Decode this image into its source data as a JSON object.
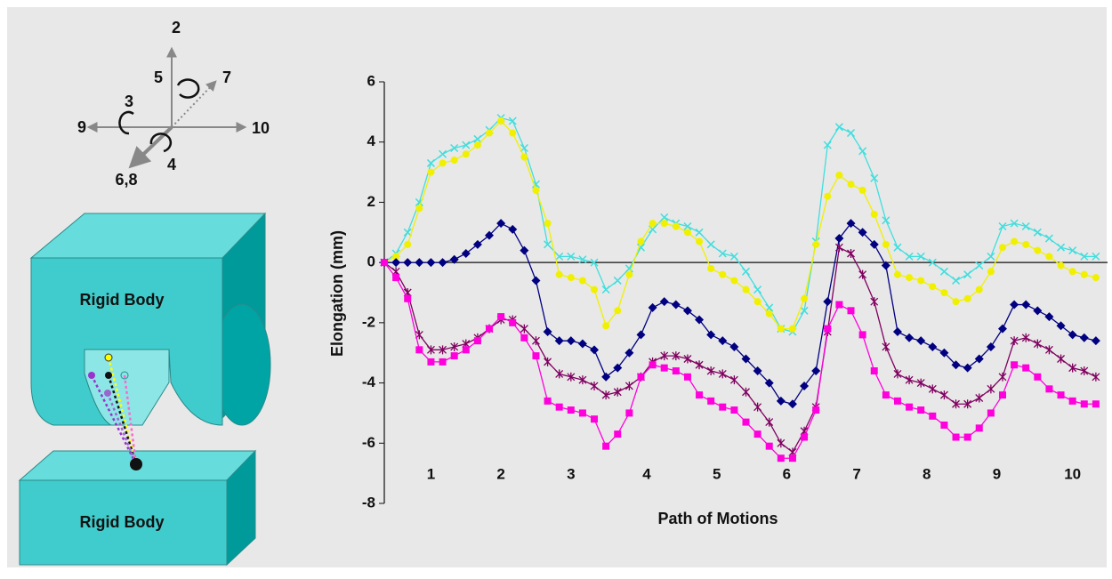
{
  "diagram": {
    "axes": [
      "2",
      "5",
      "7",
      "3",
      "9",
      "10",
      "4",
      "6,8"
    ],
    "bodies": [
      "Rigid Body",
      "Rigid Body"
    ]
  },
  "chart_data": {
    "type": "line",
    "y_label": "Elongation (mm)",
    "x_label": "Path of Motions",
    "x": [
      0,
      1,
      2,
      3,
      4,
      5,
      6,
      7,
      8,
      9,
      10,
      11,
      12,
      13,
      14,
      15,
      16,
      17,
      18,
      19,
      20,
      21,
      22,
      23,
      24,
      25,
      26,
      27,
      28,
      29,
      30,
      31,
      32,
      33,
      34,
      35,
      36,
      37,
      38,
      39,
      40,
      41,
      42,
      43,
      44,
      45,
      46,
      47,
      48,
      49,
      50,
      51,
      52,
      53,
      54,
      55,
      56,
      57,
      58,
      59,
      60,
      61
    ],
    "xlim": [
      0,
      62
    ],
    "xticks": [
      {
        "value": 4,
        "label": "1"
      },
      {
        "value": 10,
        "label": "2"
      },
      {
        "value": 16,
        "label": "3"
      },
      {
        "value": 22.5,
        "label": "4"
      },
      {
        "value": 28.5,
        "label": "5"
      },
      {
        "value": 34.5,
        "label": "6"
      },
      {
        "value": 40.5,
        "label": "7"
      },
      {
        "value": 46.5,
        "label": "8"
      },
      {
        "value": 52.5,
        "label": "9"
      },
      {
        "value": 59,
        "label": "10"
      }
    ],
    "ylim": [
      -8,
      6
    ],
    "yticks": [
      -8,
      -6,
      -4,
      -2,
      0,
      2,
      4,
      6
    ],
    "series": [
      {
        "color": "#40dede",
        "marker": "x",
        "values": [
          0,
          0.3,
          1.0,
          2.0,
          3.3,
          3.6,
          3.8,
          3.9,
          4.1,
          4.4,
          4.8,
          4.7,
          3.8,
          2.6,
          0.6,
          0.2,
          0.2,
          0.1,
          0,
          -0.9,
          -0.6,
          -0.2,
          0.5,
          1.1,
          1.5,
          1.3,
          1.2,
          1.0,
          0.6,
          0.3,
          0.2,
          -0.3,
          -0.9,
          -1.5,
          -2.2,
          -2.3,
          -1.6,
          0.7,
          3.9,
          4.5,
          4.3,
          3.7,
          2.8,
          1.4,
          0.5,
          0.2,
          0.2,
          0.0,
          -0.3,
          -0.6,
          -0.4,
          -0.1,
          0.2,
          1.2,
          1.3,
          1.2,
          1.0,
          0.8,
          0.5,
          0.4,
          0.2,
          0.2
        ]
      },
      {
        "color": "#f0f000",
        "marker": "circle",
        "values": [
          0,
          0.2,
          0.6,
          1.8,
          3.0,
          3.3,
          3.4,
          3.6,
          3.9,
          4.3,
          4.7,
          4.3,
          3.5,
          2.4,
          1.3,
          -0.4,
          -0.5,
          -0.6,
          -0.9,
          -2.1,
          -1.6,
          -0.4,
          0.7,
          1.3,
          1.3,
          1.2,
          1.0,
          0.7,
          -0.2,
          -0.4,
          -0.6,
          -0.9,
          -1.3,
          -1.7,
          -2.2,
          -2.2,
          -1.2,
          0.6,
          2.2,
          2.9,
          2.6,
          2.4,
          1.6,
          0.6,
          -0.4,
          -0.5,
          -0.6,
          -0.8,
          -1.0,
          -1.3,
          -1.2,
          -0.9,
          -0.3,
          0.5,
          0.7,
          0.6,
          0.4,
          0.2,
          -0.1,
          -0.3,
          -0.4,
          -0.5
        ]
      },
      {
        "color": "#000080",
        "marker": "diamond",
        "values": [
          0,
          0,
          0,
          0,
          0,
          0,
          0.1,
          0.3,
          0.6,
          0.9,
          1.3,
          1.1,
          0.4,
          -0.6,
          -2.3,
          -2.6,
          -2.6,
          -2.7,
          -2.9,
          -3.8,
          -3.5,
          -3.0,
          -2.4,
          -1.5,
          -1.3,
          -1.4,
          -1.6,
          -1.9,
          -2.4,
          -2.6,
          -2.8,
          -3.2,
          -3.6,
          -4.0,
          -4.6,
          -4.7,
          -4.1,
          -3.6,
          -1.3,
          0.8,
          1.3,
          1.0,
          0.6,
          -0.1,
          -2.3,
          -2.5,
          -2.6,
          -2.8,
          -3.0,
          -3.4,
          -3.5,
          -3.2,
          -2.8,
          -2.2,
          -1.4,
          -1.4,
          -1.6,
          -1.8,
          -2.1,
          -2.4,
          -2.5,
          -2.6
        ]
      },
      {
        "color": "#800060",
        "marker": "asterisk",
        "values": [
          0,
          -0.3,
          -1.0,
          -2.4,
          -2.9,
          -2.9,
          -2.8,
          -2.7,
          -2.5,
          -2.2,
          -1.9,
          -1.9,
          -2.2,
          -2.6,
          -3.3,
          -3.7,
          -3.8,
          -3.9,
          -4.1,
          -4.4,
          -4.3,
          -4.1,
          -3.8,
          -3.3,
          -3.1,
          -3.1,
          -3.2,
          -3.4,
          -3.6,
          -3.7,
          -3.9,
          -4.3,
          -4.8,
          -5.3,
          -6.0,
          -6.3,
          -5.6,
          -4.8,
          -2.3,
          0.5,
          0.3,
          -0.4,
          -1.3,
          -2.8,
          -3.7,
          -3.9,
          -4.0,
          -4.2,
          -4.4,
          -4.7,
          -4.7,
          -4.5,
          -4.2,
          -3.8,
          -2.6,
          -2.5,
          -2.7,
          -2.9,
          -3.2,
          -3.5,
          -3.6,
          -3.8
        ]
      },
      {
        "color": "#ff00dd",
        "marker": "square",
        "values": [
          0,
          -0.5,
          -1.2,
          -2.9,
          -3.3,
          -3.3,
          -3.1,
          -2.9,
          -2.6,
          -2.2,
          -1.8,
          -2.0,
          -2.5,
          -3.1,
          -4.6,
          -4.8,
          -4.9,
          -5.0,
          -5.2,
          -6.1,
          -5.7,
          -5.0,
          -3.8,
          -3.4,
          -3.5,
          -3.6,
          -3.8,
          -4.4,
          -4.6,
          -4.8,
          -4.9,
          -5.3,
          -5.7,
          -6.1,
          -6.5,
          -6.5,
          -5.8,
          -4.9,
          -2.2,
          -1.4,
          -1.6,
          -2.4,
          -3.6,
          -4.4,
          -4.6,
          -4.8,
          -4.9,
          -5.1,
          -5.4,
          -5.8,
          -5.8,
          -5.5,
          -5.0,
          -4.4,
          -3.4,
          -3.5,
          -3.8,
          -4.2,
          -4.4,
          -4.6,
          -4.7,
          -4.7
        ]
      }
    ]
  }
}
